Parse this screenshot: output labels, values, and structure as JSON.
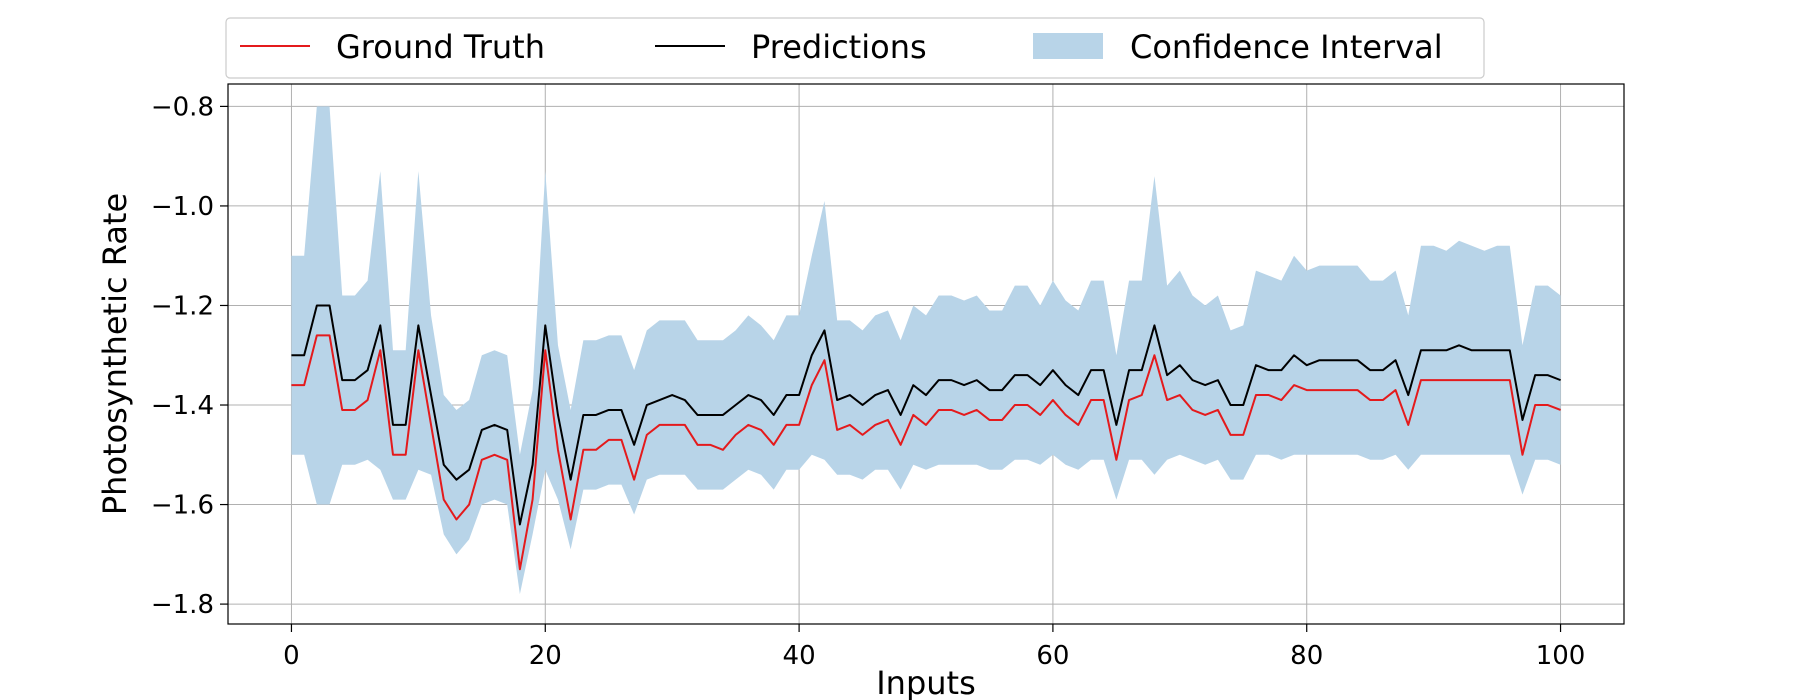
{
  "chart_data": {
    "type": "line",
    "xlabel": "Inputs",
    "ylabel": "Photosynthetic Rate",
    "xlim": [
      -5,
      105
    ],
    "ylim": [
      -1.84,
      -0.755
    ],
    "xticks": [
      0,
      20,
      40,
      60,
      80,
      100
    ],
    "xtick_labels": [
      "0",
      "20",
      "40",
      "60",
      "80",
      "100"
    ],
    "yticks": [
      -0.8,
      -1.0,
      -1.2,
      -1.4,
      -1.6,
      -1.8
    ],
    "ytick_labels": [
      "−0.8",
      "−1.0",
      "−1.2",
      "−1.4",
      "−1.6",
      "−1.8"
    ],
    "grid": true,
    "legend_position": "top",
    "colors": {
      "ground_truth": "#e41a1c",
      "predictions": "#000000",
      "confidence": "#b8d4e8"
    },
    "x": [
      0,
      1,
      2,
      3,
      4,
      5,
      6,
      7,
      8,
      9,
      10,
      11,
      12,
      13,
      14,
      15,
      16,
      17,
      18,
      19,
      20,
      21,
      22,
      23,
      24,
      25,
      26,
      27,
      28,
      29,
      30,
      31,
      32,
      33,
      34,
      35,
      36,
      37,
      38,
      39,
      40,
      41,
      42,
      43,
      44,
      45,
      46,
      47,
      48,
      49,
      50,
      51,
      52,
      53,
      54,
      55,
      56,
      57,
      58,
      59,
      60,
      61,
      62,
      63,
      64,
      65,
      66,
      67,
      68,
      69,
      70,
      71,
      72,
      73,
      74,
      75,
      76,
      77,
      78,
      79,
      80,
      81,
      82,
      83,
      84,
      85,
      86,
      87,
      88,
      89,
      90,
      91,
      92,
      93,
      94,
      95,
      96,
      97,
      98,
      99,
      100
    ],
    "series": [
      {
        "name": "Ground Truth",
        "values": [
          -1.36,
          -1.36,
          -1.26,
          -1.26,
          -1.41,
          -1.41,
          -1.39,
          -1.29,
          -1.5,
          -1.5,
          -1.29,
          -1.44,
          -1.59,
          -1.63,
          -1.6,
          -1.51,
          -1.5,
          -1.51,
          -1.73,
          -1.59,
          -1.29,
          -1.49,
          -1.63,
          -1.49,
          -1.49,
          -1.47,
          -1.47,
          -1.55,
          -1.46,
          -1.44,
          -1.44,
          -1.44,
          -1.48,
          -1.48,
          -1.49,
          -1.46,
          -1.44,
          -1.45,
          -1.48,
          -1.44,
          -1.44,
          -1.36,
          -1.31,
          -1.45,
          -1.44,
          -1.46,
          -1.44,
          -1.43,
          -1.48,
          -1.42,
          -1.44,
          -1.41,
          -1.41,
          -1.42,
          -1.41,
          -1.43,
          -1.43,
          -1.4,
          -1.4,
          -1.42,
          -1.39,
          -1.42,
          -1.44,
          -1.39,
          -1.39,
          -1.51,
          -1.39,
          -1.38,
          -1.3,
          -1.39,
          -1.38,
          -1.41,
          -1.42,
          -1.41,
          -1.46,
          -1.46,
          -1.38,
          -1.38,
          -1.39,
          -1.36,
          -1.37,
          -1.37,
          -1.37,
          -1.37,
          -1.37,
          -1.39,
          -1.39,
          -1.37,
          -1.44,
          -1.35,
          -1.35,
          -1.35,
          -1.35,
          -1.35,
          -1.35,
          -1.35,
          -1.35,
          -1.5,
          -1.4,
          -1.4,
          -1.41
        ]
      },
      {
        "name": "Predictions",
        "values": [
          -1.3,
          -1.3,
          -1.2,
          -1.2,
          -1.35,
          -1.35,
          -1.33,
          -1.24,
          -1.44,
          -1.44,
          -1.24,
          -1.38,
          -1.52,
          -1.55,
          -1.53,
          -1.45,
          -1.44,
          -1.45,
          -1.64,
          -1.52,
          -1.24,
          -1.42,
          -1.55,
          -1.42,
          -1.42,
          -1.41,
          -1.41,
          -1.48,
          -1.4,
          -1.39,
          -1.38,
          -1.39,
          -1.42,
          -1.42,
          -1.42,
          -1.4,
          -1.38,
          -1.39,
          -1.42,
          -1.38,
          -1.38,
          -1.3,
          -1.25,
          -1.39,
          -1.38,
          -1.4,
          -1.38,
          -1.37,
          -1.42,
          -1.36,
          -1.38,
          -1.35,
          -1.35,
          -1.36,
          -1.35,
          -1.37,
          -1.37,
          -1.34,
          -1.34,
          -1.36,
          -1.33,
          -1.36,
          -1.38,
          -1.33,
          -1.33,
          -1.44,
          -1.33,
          -1.33,
          -1.24,
          -1.34,
          -1.32,
          -1.35,
          -1.36,
          -1.35,
          -1.4,
          -1.4,
          -1.32,
          -1.33,
          -1.33,
          -1.3,
          -1.32,
          -1.31,
          -1.31,
          -1.31,
          -1.31,
          -1.33,
          -1.33,
          -1.31,
          -1.38,
          -1.29,
          -1.29,
          -1.29,
          -1.28,
          -1.29,
          -1.29,
          -1.29,
          -1.29,
          -1.43,
          -1.34,
          -1.34,
          -1.35
        ]
      },
      {
        "name": "Confidence Interval",
        "upper": [
          -1.1,
          -1.1,
          -0.8,
          -0.8,
          -1.18,
          -1.18,
          -1.15,
          -0.93,
          -1.29,
          -1.29,
          -0.93,
          -1.22,
          -1.38,
          -1.41,
          -1.39,
          -1.3,
          -1.29,
          -1.3,
          -1.5,
          -1.37,
          -0.93,
          -1.28,
          -1.41,
          -1.27,
          -1.27,
          -1.26,
          -1.26,
          -1.33,
          -1.25,
          -1.23,
          -1.23,
          -1.23,
          -1.27,
          -1.27,
          -1.27,
          -1.25,
          -1.22,
          -1.24,
          -1.27,
          -1.22,
          -1.22,
          -1.1,
          -0.99,
          -1.23,
          -1.23,
          -1.25,
          -1.22,
          -1.21,
          -1.27,
          -1.2,
          -1.22,
          -1.18,
          -1.18,
          -1.19,
          -1.18,
          -1.21,
          -1.21,
          -1.16,
          -1.16,
          -1.2,
          -1.15,
          -1.19,
          -1.21,
          -1.15,
          -1.15,
          -1.3,
          -1.15,
          -1.15,
          -0.94,
          -1.16,
          -1.13,
          -1.18,
          -1.2,
          -1.18,
          -1.25,
          -1.24,
          -1.13,
          -1.14,
          -1.15,
          -1.1,
          -1.13,
          -1.12,
          -1.12,
          -1.12,
          -1.12,
          -1.15,
          -1.15,
          -1.13,
          -1.22,
          -1.08,
          -1.08,
          -1.09,
          -1.07,
          -1.08,
          -1.09,
          -1.08,
          -1.08,
          -1.28,
          -1.16,
          -1.16,
          -1.18
        ],
        "lower": [
          -1.5,
          -1.5,
          -1.6,
          -1.6,
          -1.52,
          -1.52,
          -1.51,
          -1.53,
          -1.59,
          -1.59,
          -1.53,
          -1.54,
          -1.66,
          -1.7,
          -1.67,
          -1.6,
          -1.59,
          -1.6,
          -1.78,
          -1.66,
          -1.53,
          -1.59,
          -1.69,
          -1.57,
          -1.57,
          -1.56,
          -1.56,
          -1.62,
          -1.55,
          -1.54,
          -1.54,
          -1.54,
          -1.57,
          -1.57,
          -1.57,
          -1.55,
          -1.53,
          -1.54,
          -1.57,
          -1.53,
          -1.53,
          -1.5,
          -1.51,
          -1.54,
          -1.54,
          -1.55,
          -1.53,
          -1.53,
          -1.57,
          -1.52,
          -1.53,
          -1.52,
          -1.52,
          -1.52,
          -1.52,
          -1.53,
          -1.53,
          -1.51,
          -1.51,
          -1.52,
          -1.5,
          -1.52,
          -1.53,
          -1.51,
          -1.51,
          -1.59,
          -1.51,
          -1.51,
          -1.54,
          -1.51,
          -1.5,
          -1.51,
          -1.52,
          -1.51,
          -1.55,
          -1.55,
          -1.5,
          -1.5,
          -1.51,
          -1.5,
          -1.5,
          -1.5,
          -1.5,
          -1.5,
          -1.5,
          -1.51,
          -1.51,
          -1.5,
          -1.53,
          -1.5,
          -1.5,
          -1.5,
          -1.5,
          -1.5,
          -1.5,
          -1.5,
          -1.5,
          -1.58,
          -1.51,
          -1.51,
          -1.52
        ]
      }
    ]
  }
}
